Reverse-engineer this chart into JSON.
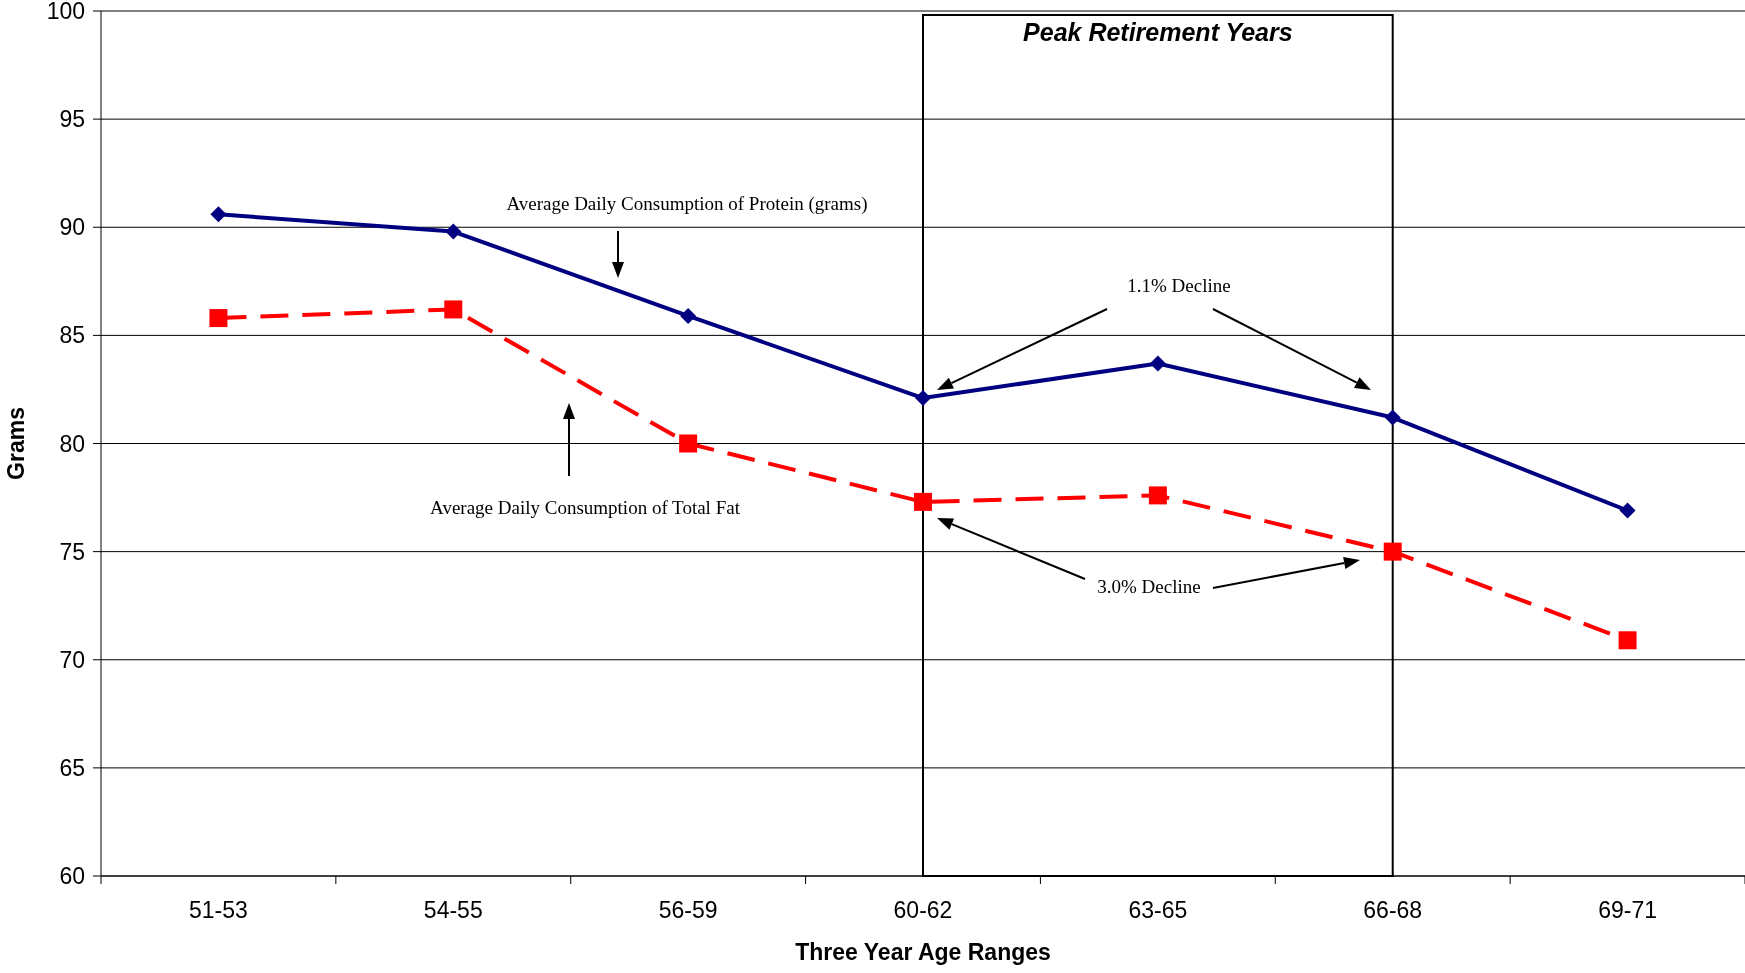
{
  "chart_data": {
    "type": "line",
    "xlabel": "Three Year Age Ranges",
    "ylabel": "Grams",
    "categories": [
      "51-53",
      "54-55",
      "56-59",
      "60-62",
      "63-65",
      "66-68",
      "69-71"
    ],
    "series": [
      {
        "color": "#000080",
        "marker": "diamond",
        "line_style": "solid",
        "values": [
          90.6,
          89.8,
          85.9,
          82.1,
          83.7,
          81.2,
          76.9
        ]
      },
      {
        "color": "#ff0000",
        "marker": "square",
        "line_style": "dashed",
        "values": [
          85.8,
          86.2,
          80.0,
          77.3,
          77.6,
          75.0,
          70.9
        ]
      }
    ],
    "ylim": [
      60,
      100
    ],
    "yticks": [
      60,
      65,
      70,
      75,
      80,
      85,
      90,
      95,
      100
    ],
    "grid": "y",
    "annotations": [
      "Peak Retirement Years",
      "Average Daily Consumption of Protein (grams)",
      "Average Daily Consumption of Total Fat",
      "1.1% Decline",
      "3.0% Decline"
    ]
  }
}
